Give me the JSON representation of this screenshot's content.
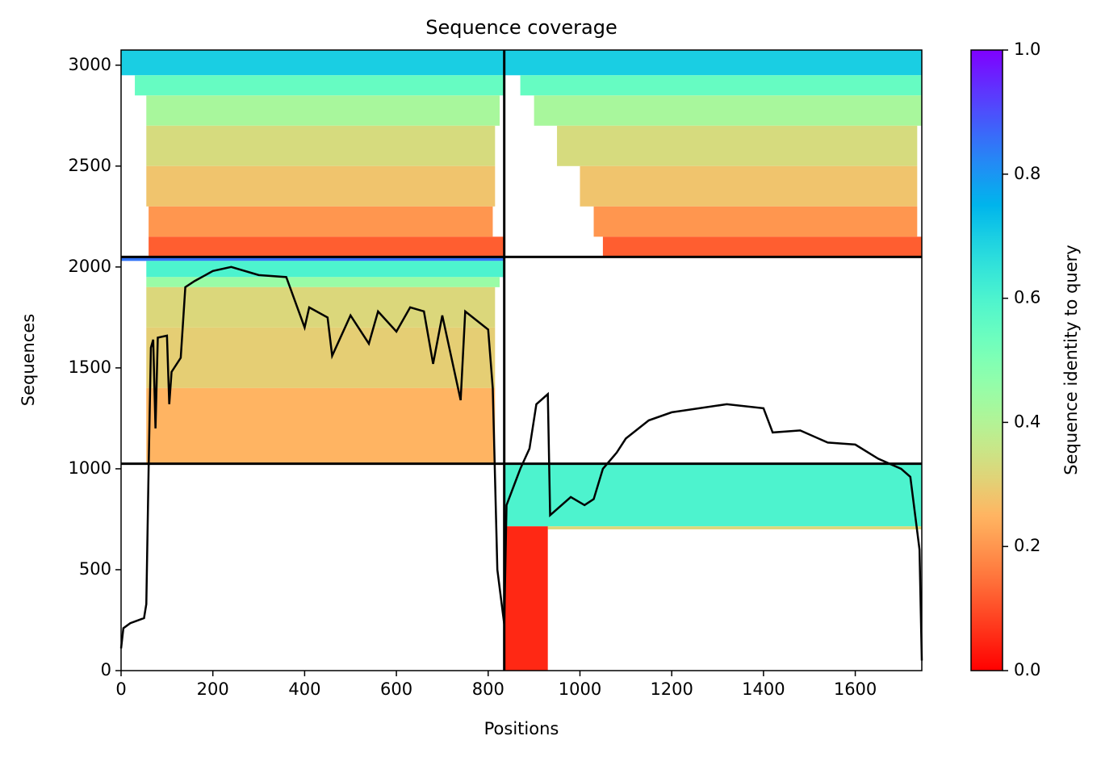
{
  "chart_data": {
    "type": "coverage",
    "title": "Sequence coverage",
    "xlabel": "Positions",
    "ylabel": "Sequences",
    "xlim": [
      0,
      1745
    ],
    "xticks": [
      0,
      200,
      400,
      600,
      800,
      1000,
      1200,
      1400,
      1600
    ],
    "ylim": [
      0,
      3075
    ],
    "yticks": [
      0,
      500,
      1000,
      1500,
      2000,
      2500,
      3000
    ],
    "colormap": "rainbow_r",
    "colorbar": {
      "label": "Sequence identity to query",
      "lim": [
        0,
        1
      ],
      "ticks": [
        {
          "value": 0,
          "label": "0.0"
        },
        {
          "value": 0.2,
          "label": "0.2"
        },
        {
          "value": 0.4,
          "label": "0.4"
        },
        {
          "value": 0.6,
          "label": "0.6"
        },
        {
          "value": 0.8,
          "label": "0.8"
        },
        {
          "value": 1,
          "label": "1.0"
        }
      ]
    },
    "blocks": [
      {
        "x0": 0,
        "x1": 835,
        "y0": 2950,
        "y1": 3075,
        "identity": 0.7
      },
      {
        "x0": 30,
        "x1": 835,
        "y0": 2850,
        "y1": 2950,
        "identity": 0.55
      },
      {
        "x0": 55,
        "x1": 825,
        "y0": 2700,
        "y1": 2850,
        "identity": 0.42
      },
      {
        "x0": 55,
        "x1": 815,
        "y0": 2500,
        "y1": 2700,
        "identity": 0.33
      },
      {
        "x0": 55,
        "x1": 815,
        "y0": 2300,
        "y1": 2500,
        "identity": 0.28
      },
      {
        "x0": 60,
        "x1": 810,
        "y0": 2150,
        "y1": 2300,
        "identity": 0.2
      },
      {
        "x0": 60,
        "x1": 835,
        "y0": 2050,
        "y1": 2150,
        "identity": 0.12
      },
      {
        "x0": 835,
        "x1": 1745,
        "y0": 2950,
        "y1": 3075,
        "identity": 0.7
      },
      {
        "x0": 870,
        "x1": 1745,
        "y0": 2850,
        "y1": 2950,
        "identity": 0.55
      },
      {
        "x0": 900,
        "x1": 1745,
        "y0": 2700,
        "y1": 2850,
        "identity": 0.42
      },
      {
        "x0": 950,
        "x1": 1735,
        "y0": 2500,
        "y1": 2700,
        "identity": 0.33
      },
      {
        "x0": 1000,
        "x1": 1735,
        "y0": 2300,
        "y1": 2500,
        "identity": 0.28
      },
      {
        "x0": 1030,
        "x1": 1735,
        "y0": 2150,
        "y1": 2300,
        "identity": 0.2
      },
      {
        "x0": 1050,
        "x1": 1745,
        "y0": 2050,
        "y1": 2150,
        "identity": 0.12
      },
      {
        "x0": 0,
        "x1": 835,
        "y0": 2030,
        "y1": 2050,
        "identity": 0.85
      },
      {
        "x0": 55,
        "x1": 835,
        "y0": 1950,
        "y1": 2030,
        "identity": 0.6
      },
      {
        "x0": 55,
        "x1": 825,
        "y0": 1900,
        "y1": 1950,
        "identity": 0.45
      },
      {
        "x0": 55,
        "x1": 815,
        "y0": 1700,
        "y1": 1900,
        "identity": 0.32
      },
      {
        "x0": 55,
        "x1": 815,
        "y0": 1400,
        "y1": 1700,
        "identity": 0.3
      },
      {
        "x0": 55,
        "x1": 815,
        "y0": 1025,
        "y1": 1400,
        "identity": 0.25
      },
      {
        "x0": 835,
        "x1": 1745,
        "y0": 715,
        "y1": 1025,
        "identity": 0.6
      },
      {
        "x0": 930,
        "x1": 1745,
        "y0": 700,
        "y1": 715,
        "identity": 0.32
      },
      {
        "x0": 835,
        "x1": 930,
        "y0": 0,
        "y1": 715,
        "identity": 0.05
      }
    ],
    "dividers": {
      "x": [
        835
      ],
      "y": [
        1025,
        2050
      ]
    },
    "line": {
      "color": "#000000",
      "x": [
        0,
        5,
        20,
        50,
        55,
        60,
        65,
        70,
        75,
        80,
        100,
        105,
        110,
        130,
        140,
        160,
        200,
        240,
        300,
        360,
        400,
        410,
        450,
        460,
        500,
        540,
        560,
        600,
        630,
        660,
        680,
        700,
        740,
        750,
        800,
        810,
        820,
        835,
        840,
        870,
        890,
        905,
        930,
        935,
        980,
        1010,
        1030,
        1050,
        1080,
        1100,
        1150,
        1200,
        1260,
        1320,
        1400,
        1420,
        1480,
        1540,
        1600,
        1650,
        1700,
        1720,
        1740,
        1745
      ],
      "y": [
        110,
        210,
        235,
        260,
        330,
        1000,
        1600,
        1640,
        1200,
        1650,
        1660,
        1320,
        1480,
        1550,
        1900,
        1930,
        1980,
        2000,
        1960,
        1950,
        1700,
        1800,
        1750,
        1560,
        1760,
        1620,
        1780,
        1680,
        1800,
        1780,
        1520,
        1760,
        1340,
        1780,
        1690,
        1400,
        500,
        230,
        820,
        1000,
        1100,
        1320,
        1370,
        770,
        860,
        820,
        850,
        1000,
        1080,
        1150,
        1240,
        1280,
        1300,
        1320,
        1300,
        1180,
        1190,
        1130,
        1120,
        1050,
        1000,
        960,
        600,
        50
      ]
    }
  }
}
